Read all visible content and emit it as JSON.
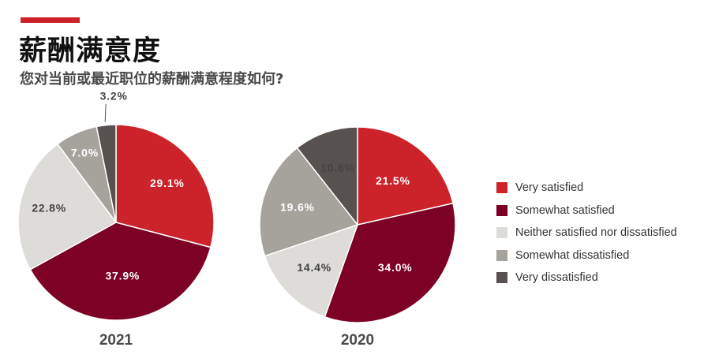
{
  "header": {
    "accent_color": "#cc2229",
    "title": "薪酬满意度",
    "subtitle": "您对当前或最近职位的薪酬满意程度如何?"
  },
  "chart_data": [
    {
      "type": "pie",
      "title": "2021",
      "categories": [
        "Very satisfied",
        "Somewhat satisfied",
        "Neither satisfied nor dissatisfied",
        "Somewhat dissatisfied",
        "Very dissatisfied"
      ],
      "values": [
        29.1,
        37.9,
        22.8,
        7.0,
        3.2
      ],
      "labels": [
        "29.1%",
        "37.9%",
        "22.8%",
        "7.0%",
        "3.2%"
      ]
    },
    {
      "type": "pie",
      "title": "2020",
      "categories": [
        "Very satisfied",
        "Somewhat satisfied",
        "Neither satisfied nor dissatisfied",
        "Somewhat dissatisfied",
        "Very dissatisfied"
      ],
      "values": [
        21.5,
        34.0,
        14.4,
        19.6,
        10.6
      ],
      "labels": [
        "21.5%",
        "34.0%",
        "14.4%",
        "19.6%",
        "10.6%"
      ]
    }
  ],
  "legend": [
    {
      "label": "Very satisfied",
      "color": "#cc2229"
    },
    {
      "label": "Somewhat satisfied",
      "color": "#7d0025"
    },
    {
      "label": "Neither satisfied nor dissatisfied",
      "color": "#dddcd8"
    },
    {
      "label": "Somewhat dissatisfied",
      "color": "#a6a39d"
    },
    {
      "label": "Very dissatisfied",
      "color": "#57524f"
    }
  ],
  "label_colors": [
    "#ffffff",
    "#ffffff",
    "#444444",
    "#ffffff",
    "#444444"
  ],
  "external_label_color": "#444444"
}
